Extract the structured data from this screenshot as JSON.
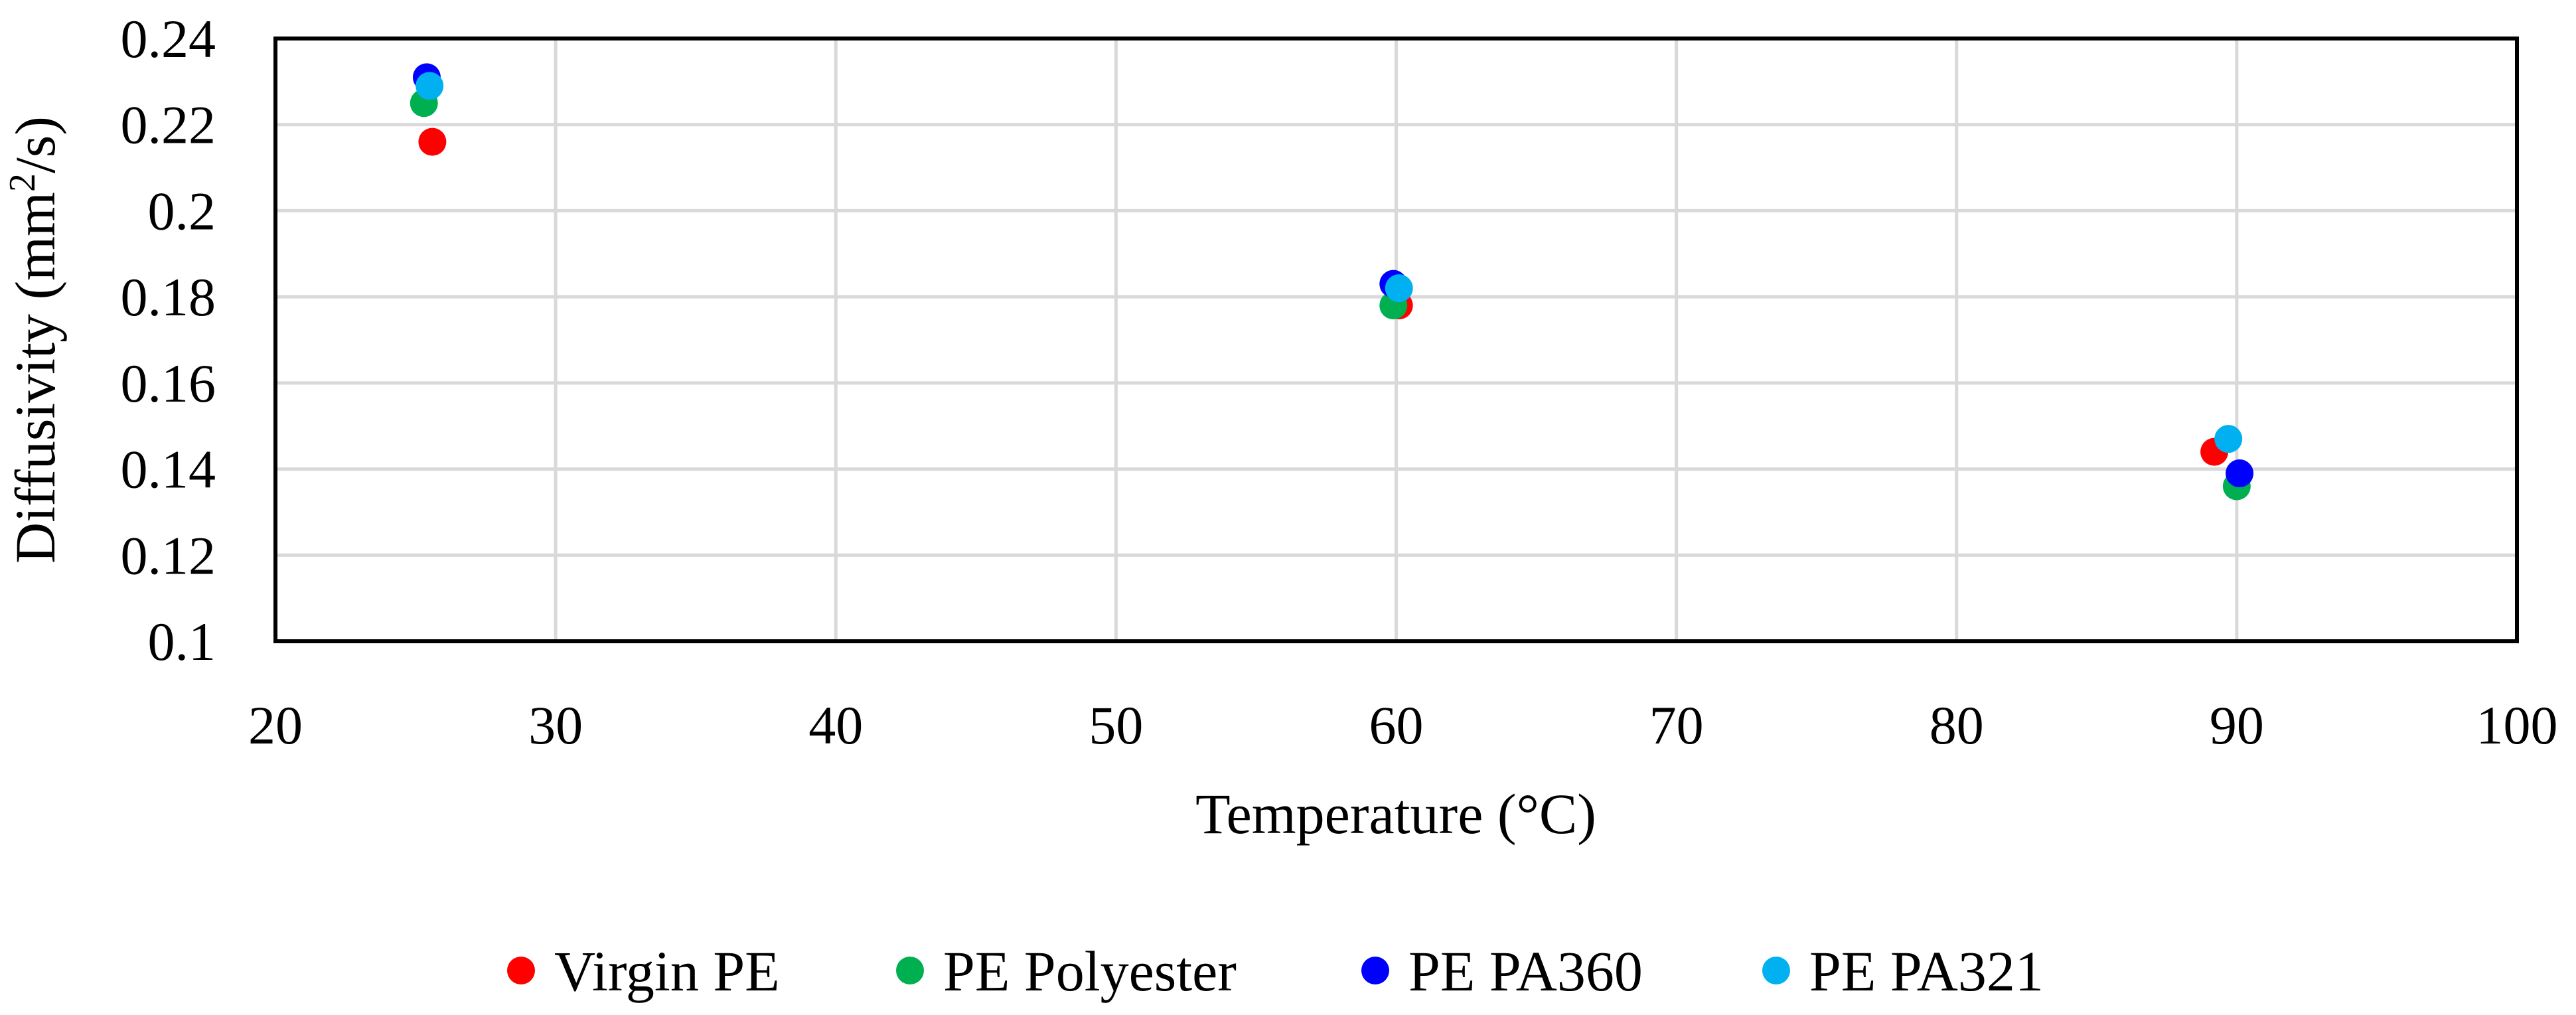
{
  "chart_data": {
    "type": "scatter",
    "title": "",
    "xlabel": "Temperature (°C)",
    "ylabel_main": "Diffusivity (mm",
    "ylabel_sup": "2",
    "ylabel_tail": "/s)",
    "xlim": [
      20,
      100
    ],
    "ylim": [
      0.1,
      0.24
    ],
    "xticks": [
      20,
      30,
      40,
      50,
      60,
      70,
      80,
      90,
      100
    ],
    "xtick_labels": [
      "20",
      "30",
      "40",
      "50",
      "60",
      "70",
      "80",
      "90",
      "100"
    ],
    "yticks": [
      0.1,
      0.12,
      0.14,
      0.16,
      0.18,
      0.2,
      0.22,
      0.24
    ],
    "ytick_labels": [
      "0.1",
      "0.12",
      "0.14",
      "0.16",
      "0.18",
      "0.2",
      "0.22",
      "0.24"
    ],
    "grid": true,
    "legend_position": "bottom",
    "series": [
      {
        "name": "Virgin PE",
        "color": "#ff0000",
        "points": [
          {
            "x": 25.6,
            "y": 0.216
          },
          {
            "x": 60.1,
            "y": 0.178
          },
          {
            "x": 89.2,
            "y": 0.144
          }
        ]
      },
      {
        "name": "PE Polyester",
        "color": "#00b050",
        "points": [
          {
            "x": 25.3,
            "y": 0.225
          },
          {
            "x": 59.9,
            "y": 0.178
          },
          {
            "x": 90.0,
            "y": 0.136
          }
        ]
      },
      {
        "name": "PE PA360",
        "color": "#0000ff",
        "points": [
          {
            "x": 25.4,
            "y": 0.231
          },
          {
            "x": 59.9,
            "y": 0.183
          },
          {
            "x": 90.1,
            "y": 0.139
          }
        ]
      },
      {
        "name": "PE PA321",
        "color": "#00b0f0",
        "points": [
          {
            "x": 25.5,
            "y": 0.229
          },
          {
            "x": 60.1,
            "y": 0.182
          },
          {
            "x": 89.7,
            "y": 0.147
          }
        ]
      }
    ]
  }
}
